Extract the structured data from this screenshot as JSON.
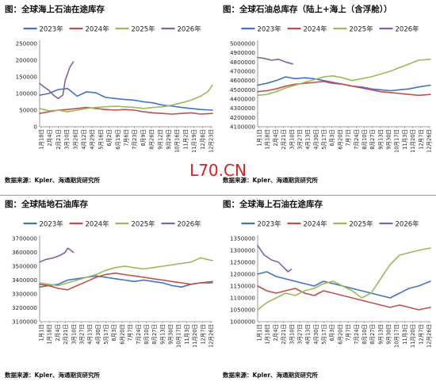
{
  "watermark": "L70.CN",
  "source_text": "数据来源：Kpler、海通期货研究所",
  "series_names": [
    "2023年",
    "2024年",
    "2025年",
    "2026年"
  ],
  "series_colors": [
    "#4472C4",
    "#C0504D",
    "#9BBB59",
    "#8064A2"
  ],
  "x_tick_labels": [
    "1月1日",
    "1月18日",
    "2月4日",
    "2月21日",
    "3月10日",
    "3月27日",
    "4月13日",
    "4月30日",
    "5月17日",
    "6月3日",
    "6月20日",
    "7月7日",
    "7月24日",
    "8月10日",
    "8月27日",
    "9月13日",
    "9月30日",
    "10月17日",
    "11月3日",
    "11月20日",
    "12月7日",
    "12月24日"
  ],
  "chart_data": [
    {
      "type": "line",
      "title": "图：全球海上石油在途库存",
      "ylim": [
        0,
        250000
      ],
      "yticks": [
        0,
        50000,
        100000,
        150000,
        200000,
        250000
      ],
      "x_day_range": [
        1,
        365
      ],
      "x_ticks": [
        "1月18日",
        "2月4日",
        "2月21日",
        "3月10日",
        "3月26日",
        "4月12日",
        "4月29日",
        "5月16日",
        "6月2日",
        "6月19日",
        "7月6日",
        "7月23日",
        "8月9日",
        "8月26日",
        "9月12日",
        "9月29日",
        "10月16日",
        "11月2日",
        "11月19日",
        "12月6日",
        "12月23日"
      ],
      "series": [
        {
          "name": "2023年",
          "x": [
            1,
            20,
            40,
            60,
            80,
            100,
            120,
            140,
            160,
            180,
            200,
            220,
            240,
            260,
            280,
            300,
            320,
            340,
            365
          ],
          "values": [
            95000,
            100000,
            112000,
            115000,
            92000,
            105000,
            102000,
            88000,
            85000,
            82000,
            80000,
            75000,
            72000,
            65000,
            62000,
            58000,
            55000,
            52000,
            50000
          ]
        },
        {
          "name": "2024年",
          "x": [
            1,
            20,
            40,
            60,
            80,
            100,
            120,
            140,
            160,
            180,
            200,
            220,
            240,
            260,
            280,
            300,
            320,
            340,
            365
          ],
          "values": [
            40000,
            45000,
            50000,
            52000,
            55000,
            58000,
            55000,
            52000,
            50000,
            52000,
            50000,
            45000,
            42000,
            40000,
            38000,
            40000,
            42000,
            38000,
            40000
          ]
        },
        {
          "name": "2025年",
          "x": [
            1,
            20,
            40,
            60,
            80,
            100,
            120,
            140,
            160,
            180,
            200,
            220,
            240,
            260,
            280,
            300,
            320,
            340,
            355,
            365
          ],
          "values": [
            55000,
            48000,
            50000,
            45000,
            50000,
            55000,
            58000,
            60000,
            62000,
            60000,
            58000,
            55000,
            58000,
            60000,
            65000,
            72000,
            80000,
            92000,
            105000,
            125000
          ]
        },
        {
          "name": "2026年",
          "x": [
            1,
            10,
            20,
            30,
            40,
            50,
            55,
            60,
            65,
            72
          ],
          "values": [
            130000,
            120000,
            110000,
            95000,
            85000,
            95000,
            140000,
            160000,
            180000,
            195000
          ]
        }
      ]
    },
    {
      "type": "line",
      "title": "图：全球石油总库存（陆上+海上（含浮舱））",
      "ylim": [
        4100000,
        5000000
      ],
      "yticks": [
        4100000,
        4200000,
        4300000,
        4400000,
        4500000,
        4600000,
        4700000,
        4800000,
        4900000,
        5000000
      ],
      "x_day_range": [
        1,
        365
      ],
      "x_ticks": [
        "1月1日",
        "1月18日",
        "2月4日",
        "2月21日",
        "3月10日",
        "3月27日",
        "4月13日",
        "4月30日",
        "5月17日",
        "6月3日",
        "6月20日",
        "7月7日",
        "7月24日",
        "8月10日",
        "8月27日",
        "9月13日",
        "9月30日",
        "10月17日",
        "11月3日",
        "11月20日",
        "12月7日",
        "12月26日"
      ],
      "series": [
        {
          "name": "2023年",
          "x": [
            1,
            20,
            40,
            60,
            80,
            100,
            120,
            140,
            160,
            180,
            200,
            220,
            240,
            260,
            280,
            300,
            320,
            340,
            365
          ],
          "values": [
            4550000,
            4570000,
            4600000,
            4640000,
            4620000,
            4630000,
            4620000,
            4600000,
            4580000,
            4560000,
            4540000,
            4530000,
            4510000,
            4500000,
            4490000,
            4500000,
            4510000,
            4530000,
            4550000
          ]
        },
        {
          "name": "2024年",
          "x": [
            1,
            20,
            40,
            60,
            80,
            100,
            120,
            140,
            160,
            180,
            200,
            220,
            240,
            260,
            280,
            300,
            320,
            340,
            365
          ],
          "values": [
            4480000,
            4490000,
            4510000,
            4540000,
            4560000,
            4570000,
            4580000,
            4590000,
            4570000,
            4560000,
            4540000,
            4520000,
            4500000,
            4480000,
            4470000,
            4460000,
            4450000,
            4440000,
            4450000
          ]
        },
        {
          "name": "2025年",
          "x": [
            1,
            20,
            40,
            60,
            80,
            100,
            120,
            140,
            160,
            180,
            200,
            220,
            240,
            260,
            280,
            300,
            320,
            340,
            365
          ],
          "values": [
            4440000,
            4450000,
            4480000,
            4520000,
            4550000,
            4580000,
            4610000,
            4640000,
            4650000,
            4630000,
            4600000,
            4620000,
            4640000,
            4670000,
            4700000,
            4740000,
            4780000,
            4820000,
            4830000
          ]
        },
        {
          "name": "2026年",
          "x": [
            1,
            15,
            30,
            45,
            60,
            75
          ],
          "values": [
            4850000,
            4840000,
            4820000,
            4830000,
            4800000,
            4780000
          ]
        }
      ]
    },
    {
      "type": "line",
      "title": "图：全球陆地石油库存",
      "ylim": [
        3100000,
        3700000
      ],
      "yticks": [
        3100000,
        3200000,
        3300000,
        3400000,
        3500000,
        3600000,
        3700000
      ],
      "x_day_range": [
        1,
        365
      ],
      "x_ticks": [
        "1月1日",
        "1月18日",
        "2月4日",
        "2月21日",
        "3月10日",
        "3月27日",
        "4月13日",
        "4月30日",
        "5月17日",
        "6月3日",
        "6月20日",
        "7月7日",
        "7月24日",
        "8月10日",
        "8月27日",
        "9月13日",
        "9月30日",
        "10月17日",
        "11月3日",
        "11月20日",
        "12月7日",
        "12月26日"
      ],
      "series": [
        {
          "name": "2023年",
          "x": [
            1,
            20,
            40,
            60,
            80,
            100,
            120,
            140,
            160,
            180,
            200,
            220,
            240,
            260,
            280,
            300,
            320,
            340,
            365
          ],
          "values": [
            3350000,
            3360000,
            3370000,
            3400000,
            3410000,
            3420000,
            3430000,
            3420000,
            3410000,
            3400000,
            3390000,
            3400000,
            3390000,
            3380000,
            3360000,
            3350000,
            3370000,
            3380000,
            3380000
          ]
        },
        {
          "name": "2024年",
          "x": [
            1,
            20,
            40,
            60,
            80,
            100,
            120,
            140,
            160,
            180,
            200,
            220,
            240,
            260,
            280,
            300,
            320,
            340,
            365
          ],
          "values": [
            3370000,
            3360000,
            3340000,
            3330000,
            3360000,
            3390000,
            3420000,
            3440000,
            3450000,
            3440000,
            3430000,
            3420000,
            3410000,
            3400000,
            3390000,
            3380000,
            3370000,
            3380000,
            3390000
          ]
        },
        {
          "name": "2025年",
          "x": [
            1,
            20,
            40,
            60,
            80,
            100,
            120,
            140,
            160,
            180,
            200,
            220,
            240,
            260,
            280,
            300,
            320,
            340,
            365
          ],
          "values": [
            3380000,
            3370000,
            3360000,
            3380000,
            3400000,
            3420000,
            3440000,
            3470000,
            3490000,
            3500000,
            3490000,
            3480000,
            3490000,
            3500000,
            3510000,
            3520000,
            3530000,
            3560000,
            3540000
          ]
        },
        {
          "name": "2026年",
          "x": [
            1,
            15,
            30,
            45,
            55,
            60,
            65,
            72
          ],
          "values": [
            3530000,
            3550000,
            3560000,
            3580000,
            3600000,
            3630000,
            3620000,
            3600000
          ]
        }
      ]
    },
    {
      "type": "line",
      "title": "图：全球海上石油在途库存",
      "ylim": [
        1000000,
        1350000
      ],
      "yticks": [
        1000000,
        1050000,
        1100000,
        1150000,
        1200000,
        1250000,
        1300000,
        1350000
      ],
      "x_day_range": [
        1,
        365
      ],
      "x_ticks": [
        "1月1日",
        "1月18日",
        "2月4日",
        "2月21日",
        "3月10日",
        "3月27日",
        "4月13日",
        "4月30日",
        "5月17日",
        "6月3日",
        "6月20日",
        "7月7日",
        "7月24日",
        "8月10日",
        "8月27日",
        "9月13日",
        "9月30日",
        "10月17日",
        "11月3日",
        "11月20日",
        "12月7日",
        "12月26日"
      ],
      "series": [
        {
          "name": "2023年",
          "x": [
            1,
            20,
            40,
            60,
            80,
            100,
            120,
            140,
            160,
            180,
            200,
            220,
            240,
            260,
            280,
            300,
            320,
            340,
            365
          ],
          "values": [
            1200000,
            1210000,
            1190000,
            1180000,
            1170000,
            1160000,
            1150000,
            1170000,
            1160000,
            1150000,
            1140000,
            1130000,
            1120000,
            1110000,
            1100000,
            1120000,
            1140000,
            1150000,
            1170000
          ]
        },
        {
          "name": "2024年",
          "x": [
            1,
            20,
            40,
            60,
            80,
            100,
            120,
            140,
            160,
            180,
            200,
            220,
            240,
            260,
            280,
            300,
            320,
            340,
            365
          ],
          "values": [
            1150000,
            1130000,
            1120000,
            1130000,
            1140000,
            1120000,
            1110000,
            1130000,
            1120000,
            1110000,
            1100000,
            1090000,
            1080000,
            1070000,
            1060000,
            1070000,
            1060000,
            1050000,
            1060000
          ]
        },
        {
          "name": "2025年",
          "x": [
            1,
            20,
            40,
            60,
            80,
            100,
            120,
            140,
            160,
            180,
            200,
            220,
            240,
            260,
            280,
            300,
            320,
            340,
            365
          ],
          "values": [
            1050000,
            1080000,
            1100000,
            1120000,
            1110000,
            1130000,
            1140000,
            1160000,
            1170000,
            1150000,
            1130000,
            1100000,
            1120000,
            1180000,
            1240000,
            1280000,
            1290000,
            1300000,
            1310000
          ]
        },
        {
          "name": "2026年",
          "x": [
            1,
            15,
            30,
            45,
            55,
            60,
            65,
            72
          ],
          "values": [
            1320000,
            1280000,
            1260000,
            1250000,
            1230000,
            1220000,
            1210000,
            1220000
          ]
        }
      ]
    }
  ]
}
